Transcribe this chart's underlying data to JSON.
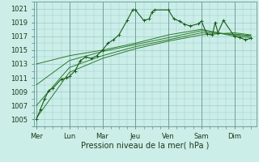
{
  "xlabel": "Pression niveau de la mer( hPa )",
  "background_color": "#cceee8",
  "grid_color": "#99cccc",
  "line_color_main": "#1a5c1a",
  "line_color_smooth": "#2d7a2d",
  "ylim": [
    1004,
    1022
  ],
  "yticks": [
    1005,
    1007,
    1009,
    1011,
    1013,
    1015,
    1017,
    1019,
    1021
  ],
  "days": [
    "Mer",
    "Lun",
    "Mar",
    "Jeu",
    "Ven",
    "Sam",
    "Dim"
  ],
  "x_day_positions": [
    0,
    24,
    48,
    72,
    96,
    120,
    144
  ],
  "xlim": [
    -2,
    160
  ],
  "main_x": [
    0,
    3,
    6,
    9,
    12,
    18,
    22,
    24,
    28,
    32,
    36,
    40,
    44,
    48,
    52,
    56,
    60,
    66,
    70,
    72,
    78,
    82,
    84,
    86,
    96,
    100,
    104,
    108,
    112,
    118,
    120,
    124,
    128,
    130,
    132,
    136,
    144,
    148,
    152,
    156
  ],
  "main_y": [
    1005.0,
    1006.5,
    1008.0,
    1009.2,
    1009.5,
    1010.8,
    1011.0,
    1011.2,
    1012.0,
    1013.5,
    1014.0,
    1013.8,
    1014.2,
    1015.0,
    1016.0,
    1016.5,
    1017.2,
    1019.3,
    1020.8,
    1020.8,
    1019.3,
    1019.5,
    1020.5,
    1020.8,
    1020.8,
    1019.5,
    1019.2,
    1018.7,
    1018.5,
    1018.8,
    1019.2,
    1017.3,
    1017.2,
    1019.0,
    1017.5,
    1019.3,
    1017.0,
    1016.8,
    1016.5,
    1016.7
  ],
  "smooth1_x": [
    0,
    24,
    48,
    72,
    96,
    120,
    144,
    156
  ],
  "smooth1_y": [
    1013.0,
    1014.2,
    1015.0,
    1016.0,
    1017.2,
    1018.0,
    1017.0,
    1016.8
  ],
  "smooth2_x": [
    0,
    24,
    48,
    72,
    96,
    120,
    144,
    156
  ],
  "smooth2_y": [
    1010.0,
    1013.5,
    1014.8,
    1015.8,
    1016.8,
    1017.8,
    1017.2,
    1017.0
  ],
  "smooth3_x": [
    0,
    24,
    48,
    72,
    96,
    120,
    144,
    156
  ],
  "smooth3_y": [
    1007.0,
    1012.5,
    1014.2,
    1015.5,
    1016.5,
    1017.5,
    1017.3,
    1017.1
  ],
  "smooth4_x": [
    0,
    24,
    48,
    72,
    96,
    120,
    144,
    156
  ],
  "smooth4_y": [
    1005.2,
    1011.8,
    1013.8,
    1015.2,
    1016.3,
    1017.2,
    1017.5,
    1017.2
  ]
}
